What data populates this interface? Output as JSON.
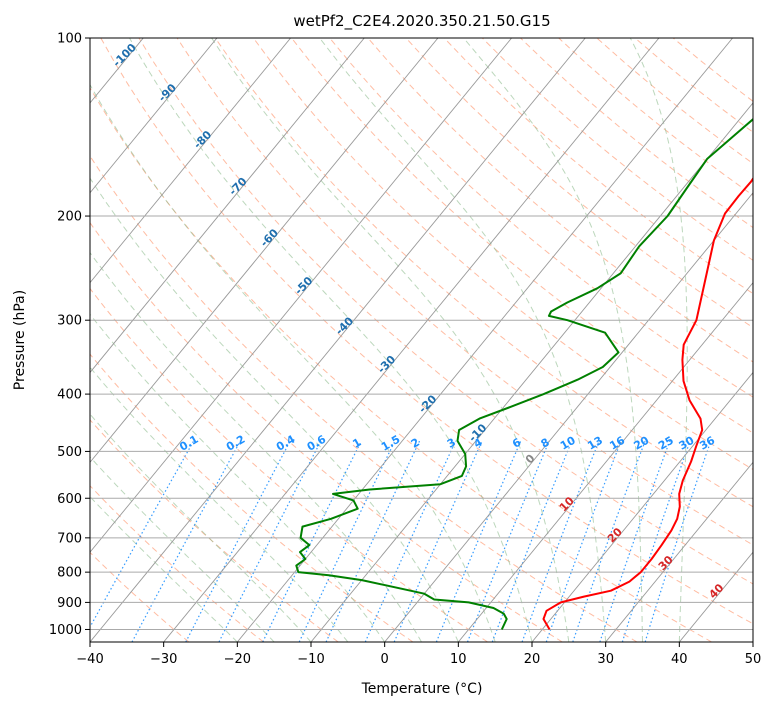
{
  "chart_data": {
    "type": "line",
    "title": "wetPf2_C2E4.2020.350.21.50.G15",
    "xlabel": "Temperature (°C)",
    "ylabel": "Pressure (hPa)",
    "xlim": [
      -40,
      50
    ],
    "ylim": [
      1050,
      100
    ],
    "y_scale": "log",
    "x_ticks": [
      -40,
      -30,
      -20,
      -10,
      0,
      10,
      20,
      30,
      40,
      50
    ],
    "y_ticks": [
      1000,
      900,
      800,
      700,
      600,
      500,
      400,
      300,
      200,
      100
    ],
    "grid": true,
    "series": [
      {
        "color": "#ff0000",
        "points": [
          [
            21,
            1000
          ],
          [
            19,
            960
          ],
          [
            18.5,
            930
          ],
          [
            19.5,
            900
          ],
          [
            22,
            880
          ],
          [
            25,
            860
          ],
          [
            26.5,
            830
          ],
          [
            27,
            800
          ],
          [
            27,
            760
          ],
          [
            26.8,
            720
          ],
          [
            26.5,
            680
          ],
          [
            26,
            650
          ],
          [
            25,
            620
          ],
          [
            23.5,
            590
          ],
          [
            22.5,
            560
          ],
          [
            21.5,
            520
          ],
          [
            20.5,
            490
          ],
          [
            19.5,
            460
          ],
          [
            18,
            440
          ],
          [
            14.5,
            410
          ],
          [
            11.5,
            380
          ],
          [
            9,
            350
          ],
          [
            7.5,
            330
          ],
          [
            6.5,
            300
          ],
          [
            3.5,
            260
          ],
          [
            0,
            220
          ],
          [
            -1.5,
            198
          ],
          [
            -1.6,
            185
          ],
          [
            -1.5,
            175
          ],
          [
            -2,
            160
          ],
          [
            -3,
            140
          ],
          [
            -3.2,
            125
          ],
          [
            -3,
            115
          ],
          [
            -2.5,
            108
          ],
          [
            -1.5,
            100
          ]
        ]
      },
      {
        "color": "#008000",
        "points": [
          [
            14.5,
            1000
          ],
          [
            14,
            960
          ],
          [
            13,
            940
          ],
          [
            11,
            920
          ],
          [
            7,
            900
          ],
          [
            2,
            890
          ],
          [
            0,
            870
          ],
          [
            -10,
            825
          ],
          [
            -15,
            810
          ],
          [
            -19.5,
            800
          ],
          [
            -20.5,
            780
          ],
          [
            -20,
            760
          ],
          [
            -21.5,
            740
          ],
          [
            -21,
            720
          ],
          [
            -23,
            700
          ],
          [
            -24,
            670
          ],
          [
            -21,
            650
          ],
          [
            -18.5,
            625
          ],
          [
            -20,
            605
          ],
          [
            -23.5,
            590
          ],
          [
            -19,
            580
          ],
          [
            -10,
            568
          ],
          [
            -8,
            550
          ],
          [
            -8.5,
            530
          ],
          [
            -10,
            505
          ],
          [
            -12.5,
            480
          ],
          [
            -13.5,
            460
          ],
          [
            -12,
            440
          ],
          [
            -9,
            420
          ],
          [
            -6,
            400
          ],
          [
            -3,
            378
          ],
          [
            -1,
            360
          ],
          [
            -0.5,
            340
          ],
          [
            -4.5,
            315
          ],
          [
            -11,
            300
          ],
          [
            -14,
            295
          ],
          [
            -14.2,
            290
          ],
          [
            -13,
            280
          ],
          [
            -10.5,
            265
          ],
          [
            -9,
            250
          ],
          [
            -9.5,
            225
          ],
          [
            -9,
            200
          ],
          [
            -9.5,
            180
          ],
          [
            -10,
            160
          ],
          [
            -8,
            135
          ],
          [
            -5,
            115
          ],
          [
            -2,
            100
          ]
        ]
      }
    ],
    "dry_adiabat_labels": [
      "-100",
      "-90",
      "-80",
      "-70",
      "-60",
      "-50",
      "-40",
      "-30",
      "-20",
      "-10",
      "0",
      "10",
      "20",
      "30",
      "40"
    ],
    "mixing_ratio_labels": [
      "0.1",
      "0.2",
      "0.4",
      "0.6",
      "1",
      "1.5",
      "2",
      "3",
      "4",
      "6",
      "8",
      "10",
      "13",
      "16",
      "20",
      "25",
      "30",
      "36"
    ],
    "colors": {
      "temperature": "#ff0000",
      "dewpoint": "#008000",
      "dry_adiabats": "#ffa07a",
      "moist_adiabats": "#8fbc8f",
      "mixing_ratio": "#1e90ff",
      "isotherms": "#999999",
      "isobars": "#aaaaaa"
    }
  }
}
